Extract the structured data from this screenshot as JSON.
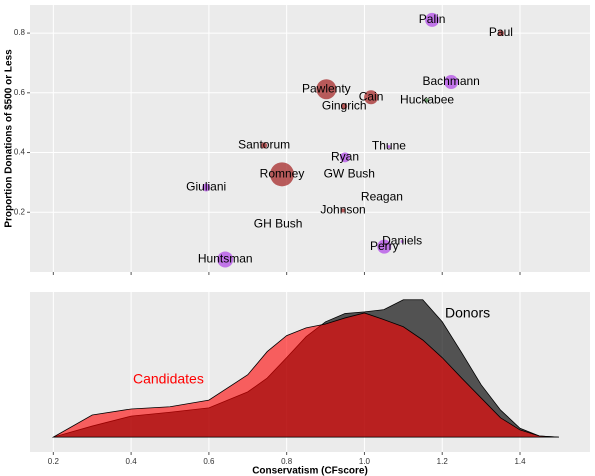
{
  "chart_data": [
    {
      "type": "scatter",
      "ylabel": "Proportion Donations of $500 or Less",
      "point_labels": [
        "Palin",
        "Paul",
        "Pawlenty",
        "Cain",
        "Gingrich",
        "Bachmann",
        "Huckabee",
        "Thune",
        "Santorum",
        "Ryan",
        "Romney",
        "GW Bush",
        "Giuliani",
        "Reagan",
        "Johnson",
        "GH Bush",
        "Daniels",
        "Perry",
        "Huntsman"
      ],
      "x": [
        1.174,
        1.351,
        0.902,
        1.017,
        0.948,
        1.223,
        1.161,
        1.063,
        0.742,
        0.95,
        0.788,
        0.961,
        0.593,
        1.045,
        0.945,
        0.778,
        1.097,
        1.051,
        0.642
      ],
      "values": [
        0.844,
        0.8,
        0.612,
        0.585,
        0.555,
        0.636,
        0.575,
        0.42,
        0.424,
        0.384,
        0.327,
        0.327,
        0.283,
        0.25,
        0.206,
        0.159,
        0.102,
        0.085,
        0.042
      ],
      "sizes": [
        7,
        3,
        10,
        7,
        3,
        7,
        2,
        1.5,
        3,
        5,
        12,
        0,
        4,
        0,
        2,
        0,
        1.5,
        7,
        8
      ],
      "point_colors": [
        "#b34ee8",
        "#a52a2a",
        "#a52a2a",
        "#a52a2a",
        "#a52a2a",
        "#b34ee8",
        "#3a7a3a",
        "#b34ee8",
        "#a52a2a",
        "#b34ee8",
        "#a52a2a",
        "#a52a2a",
        "#b34ee8",
        "#a52a2a",
        "#a52a2a",
        "#a52a2a",
        "#b34ee8",
        "#b34ee8",
        "#b34ee8"
      ],
      "xlim": [
        0.14,
        1.58
      ],
      "ylim": [
        0,
        0.894
      ],
      "xticks": [
        0.2,
        0.4,
        0.6,
        0.8,
        1.0,
        1.2,
        1.4
      ],
      "yticks": [
        0.2,
        0.4,
        0.6,
        0.8
      ],
      "grid": true
    },
    {
      "type": "area",
      "xlabel": "Conservatism (CFscore)",
      "x": [
        0.2,
        0.3,
        0.4,
        0.5,
        0.6,
        0.7,
        0.75,
        0.8,
        0.85,
        0.9,
        0.95,
        1.0,
        1.05,
        1.1,
        1.15,
        1.2,
        1.25,
        1.3,
        1.35,
        1.4,
        1.45,
        1.5
      ],
      "series": [
        {
          "name": "Donors",
          "color": "#000000",
          "values": [
            0,
            0.2,
            0.38,
            0.45,
            0.53,
            0.82,
            1.07,
            1.44,
            1.82,
            2.09,
            2.24,
            2.27,
            2.31,
            2.49,
            2.49,
            2.09,
            1.53,
            0.95,
            0.49,
            0.16,
            0.02,
            0
          ]
        },
        {
          "name": "Candidates",
          "color": "#ff0000",
          "values": [
            0,
            0.4,
            0.51,
            0.55,
            0.67,
            1.13,
            1.55,
            1.84,
            1.98,
            2.05,
            2.16,
            2.25,
            2.13,
            2.0,
            1.76,
            1.44,
            1.07,
            0.71,
            0.35,
            0.13,
            0.02,
            0
          ]
        }
      ],
      "xlim": [
        0.14,
        1.58
      ],
      "ylim": [
        -0.27,
        2.63
      ],
      "xticks": [
        {
          "value": 0.2,
          "label": "0.2"
        },
        {
          "value": 0.4,
          "label": "0.4"
        },
        {
          "value": 0.6,
          "label": "0.6"
        },
        {
          "value": 0.8,
          "label": "0.8"
        },
        {
          "value": 1.0,
          "label": "1.0"
        },
        {
          "value": 1.2,
          "label": "1.2"
        },
        {
          "value": 1.4,
          "label": "1.4"
        }
      ],
      "grid": true
    }
  ]
}
